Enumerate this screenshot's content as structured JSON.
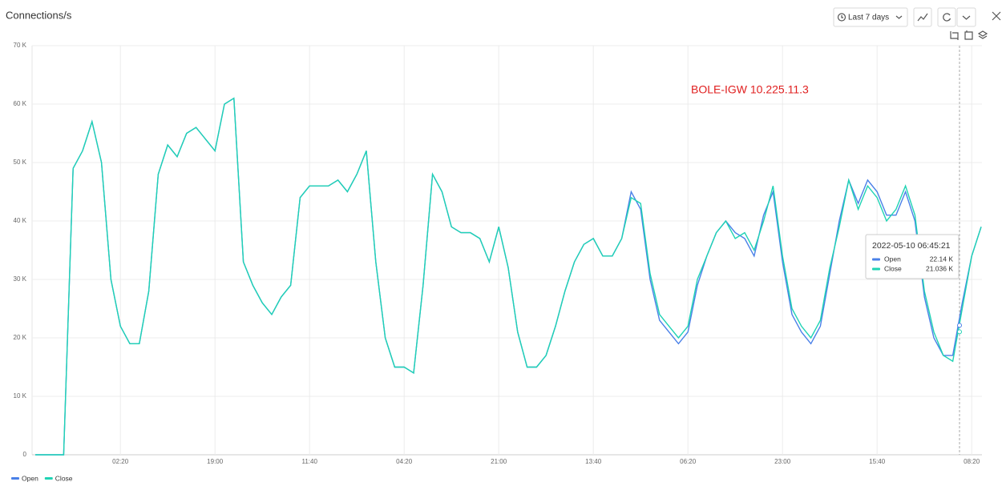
{
  "header": {
    "title": "Connections/s",
    "range_button": "Last 7 days"
  },
  "chart_data": {
    "type": "line",
    "annotation": "BOLE-IGW 10.225.11.3",
    "categories": [
      null,
      null,
      null,
      null,
      null,
      null,
      null,
      null,
      null,
      "02:20",
      null,
      null,
      null,
      null,
      null,
      null,
      null,
      null,
      null,
      "19:00",
      null,
      null,
      null,
      null,
      null,
      null,
      null,
      null,
      null,
      "11:40",
      null,
      null,
      null,
      null,
      null,
      null,
      null,
      null,
      null,
      "04:20",
      null,
      null,
      null,
      null,
      null,
      null,
      null,
      null,
      null,
      "21:00",
      null,
      null,
      null,
      null,
      null,
      null,
      null,
      null,
      null,
      "13:40",
      null,
      null,
      null,
      null,
      null,
      null,
      null,
      null,
      null,
      "06:20",
      null,
      null,
      null,
      null,
      null,
      null,
      null,
      null,
      null,
      "23:00",
      null,
      null,
      null,
      null,
      null,
      null,
      null,
      null,
      null,
      "15:40",
      null,
      null,
      null,
      null,
      null,
      null,
      null,
      null,
      null,
      "08:20",
      null
    ],
    "series": [
      {
        "name": "Open",
        "color": "#4a80e8",
        "values": [
          0,
          0,
          0,
          0,
          49000,
          52000,
          57000,
          50000,
          30000,
          22000,
          19000,
          19000,
          28000,
          48000,
          53000,
          51000,
          55000,
          56000,
          54000,
          52000,
          60000,
          61000,
          33000,
          29000,
          26000,
          24000,
          27000,
          29000,
          44000,
          46000,
          46000,
          46000,
          47000,
          45000,
          48000,
          52000,
          33000,
          20000,
          15000,
          15000,
          14000,
          29000,
          48000,
          45000,
          39000,
          38000,
          38000,
          37000,
          33000,
          39000,
          32000,
          21000,
          15000,
          15000,
          17000,
          22000,
          28000,
          33000,
          36000,
          37000,
          34000,
          34000,
          37000,
          45000,
          42000,
          30000,
          23000,
          21000,
          19000,
          21000,
          29000,
          34000,
          38000,
          40000,
          38000,
          37000,
          34000,
          41000,
          45000,
          33000,
          24000,
          21000,
          19000,
          22000,
          31000,
          40000,
          47000,
          43000,
          47000,
          45000,
          41000,
          41000,
          45000,
          40000,
          27000,
          20000,
          17000,
          17000,
          26000,
          34000,
          39000
        ]
      },
      {
        "name": "Close",
        "color": "#1fd3b4",
        "values": [
          0,
          0,
          0,
          0,
          49000,
          52000,
          57000,
          50000,
          30000,
          22000,
          19000,
          19000,
          28000,
          48000,
          53000,
          51000,
          55000,
          56000,
          54000,
          52000,
          60000,
          61000,
          33000,
          29000,
          26000,
          24000,
          27000,
          29000,
          44000,
          46000,
          46000,
          46000,
          47000,
          45000,
          48000,
          52000,
          33000,
          20000,
          15000,
          15000,
          14000,
          29000,
          48000,
          45000,
          39000,
          38000,
          38000,
          37000,
          33000,
          39000,
          32000,
          21000,
          15000,
          15000,
          17000,
          22000,
          28000,
          33000,
          36000,
          37000,
          34000,
          34000,
          37000,
          44000,
          43000,
          31000,
          24000,
          22000,
          20000,
          22000,
          30000,
          34000,
          38000,
          40000,
          37000,
          38000,
          35000,
          40000,
          46000,
          34000,
          25000,
          22000,
          20000,
          23000,
          32000,
          39000,
          47000,
          42000,
          46000,
          44000,
          40000,
          42000,
          46000,
          41000,
          28000,
          21000,
          17000,
          16000,
          25000,
          34000,
          39000
        ]
      }
    ],
    "ylim": [
      0,
      70000
    ],
    "yticks": [
      0,
      {
        "value": 10000,
        "label": "10 K"
      },
      {
        "value": 20000,
        "label": "20 K"
      },
      {
        "value": 30000,
        "label": "30 K"
      },
      {
        "value": 40000,
        "label": "40 K"
      },
      {
        "value": 50000,
        "label": "50 K"
      },
      {
        "value": 60000,
        "label": "60 K"
      },
      {
        "value": 70000,
        "label": "70 K"
      }
    ],
    "grid": true,
    "tooltip": {
      "time": "2022-05-10 06:45:21",
      "items": [
        {
          "value": 22140,
          "label": "22.14 K"
        },
        {
          "value": 21036,
          "label": "21.036 K"
        }
      ]
    }
  }
}
